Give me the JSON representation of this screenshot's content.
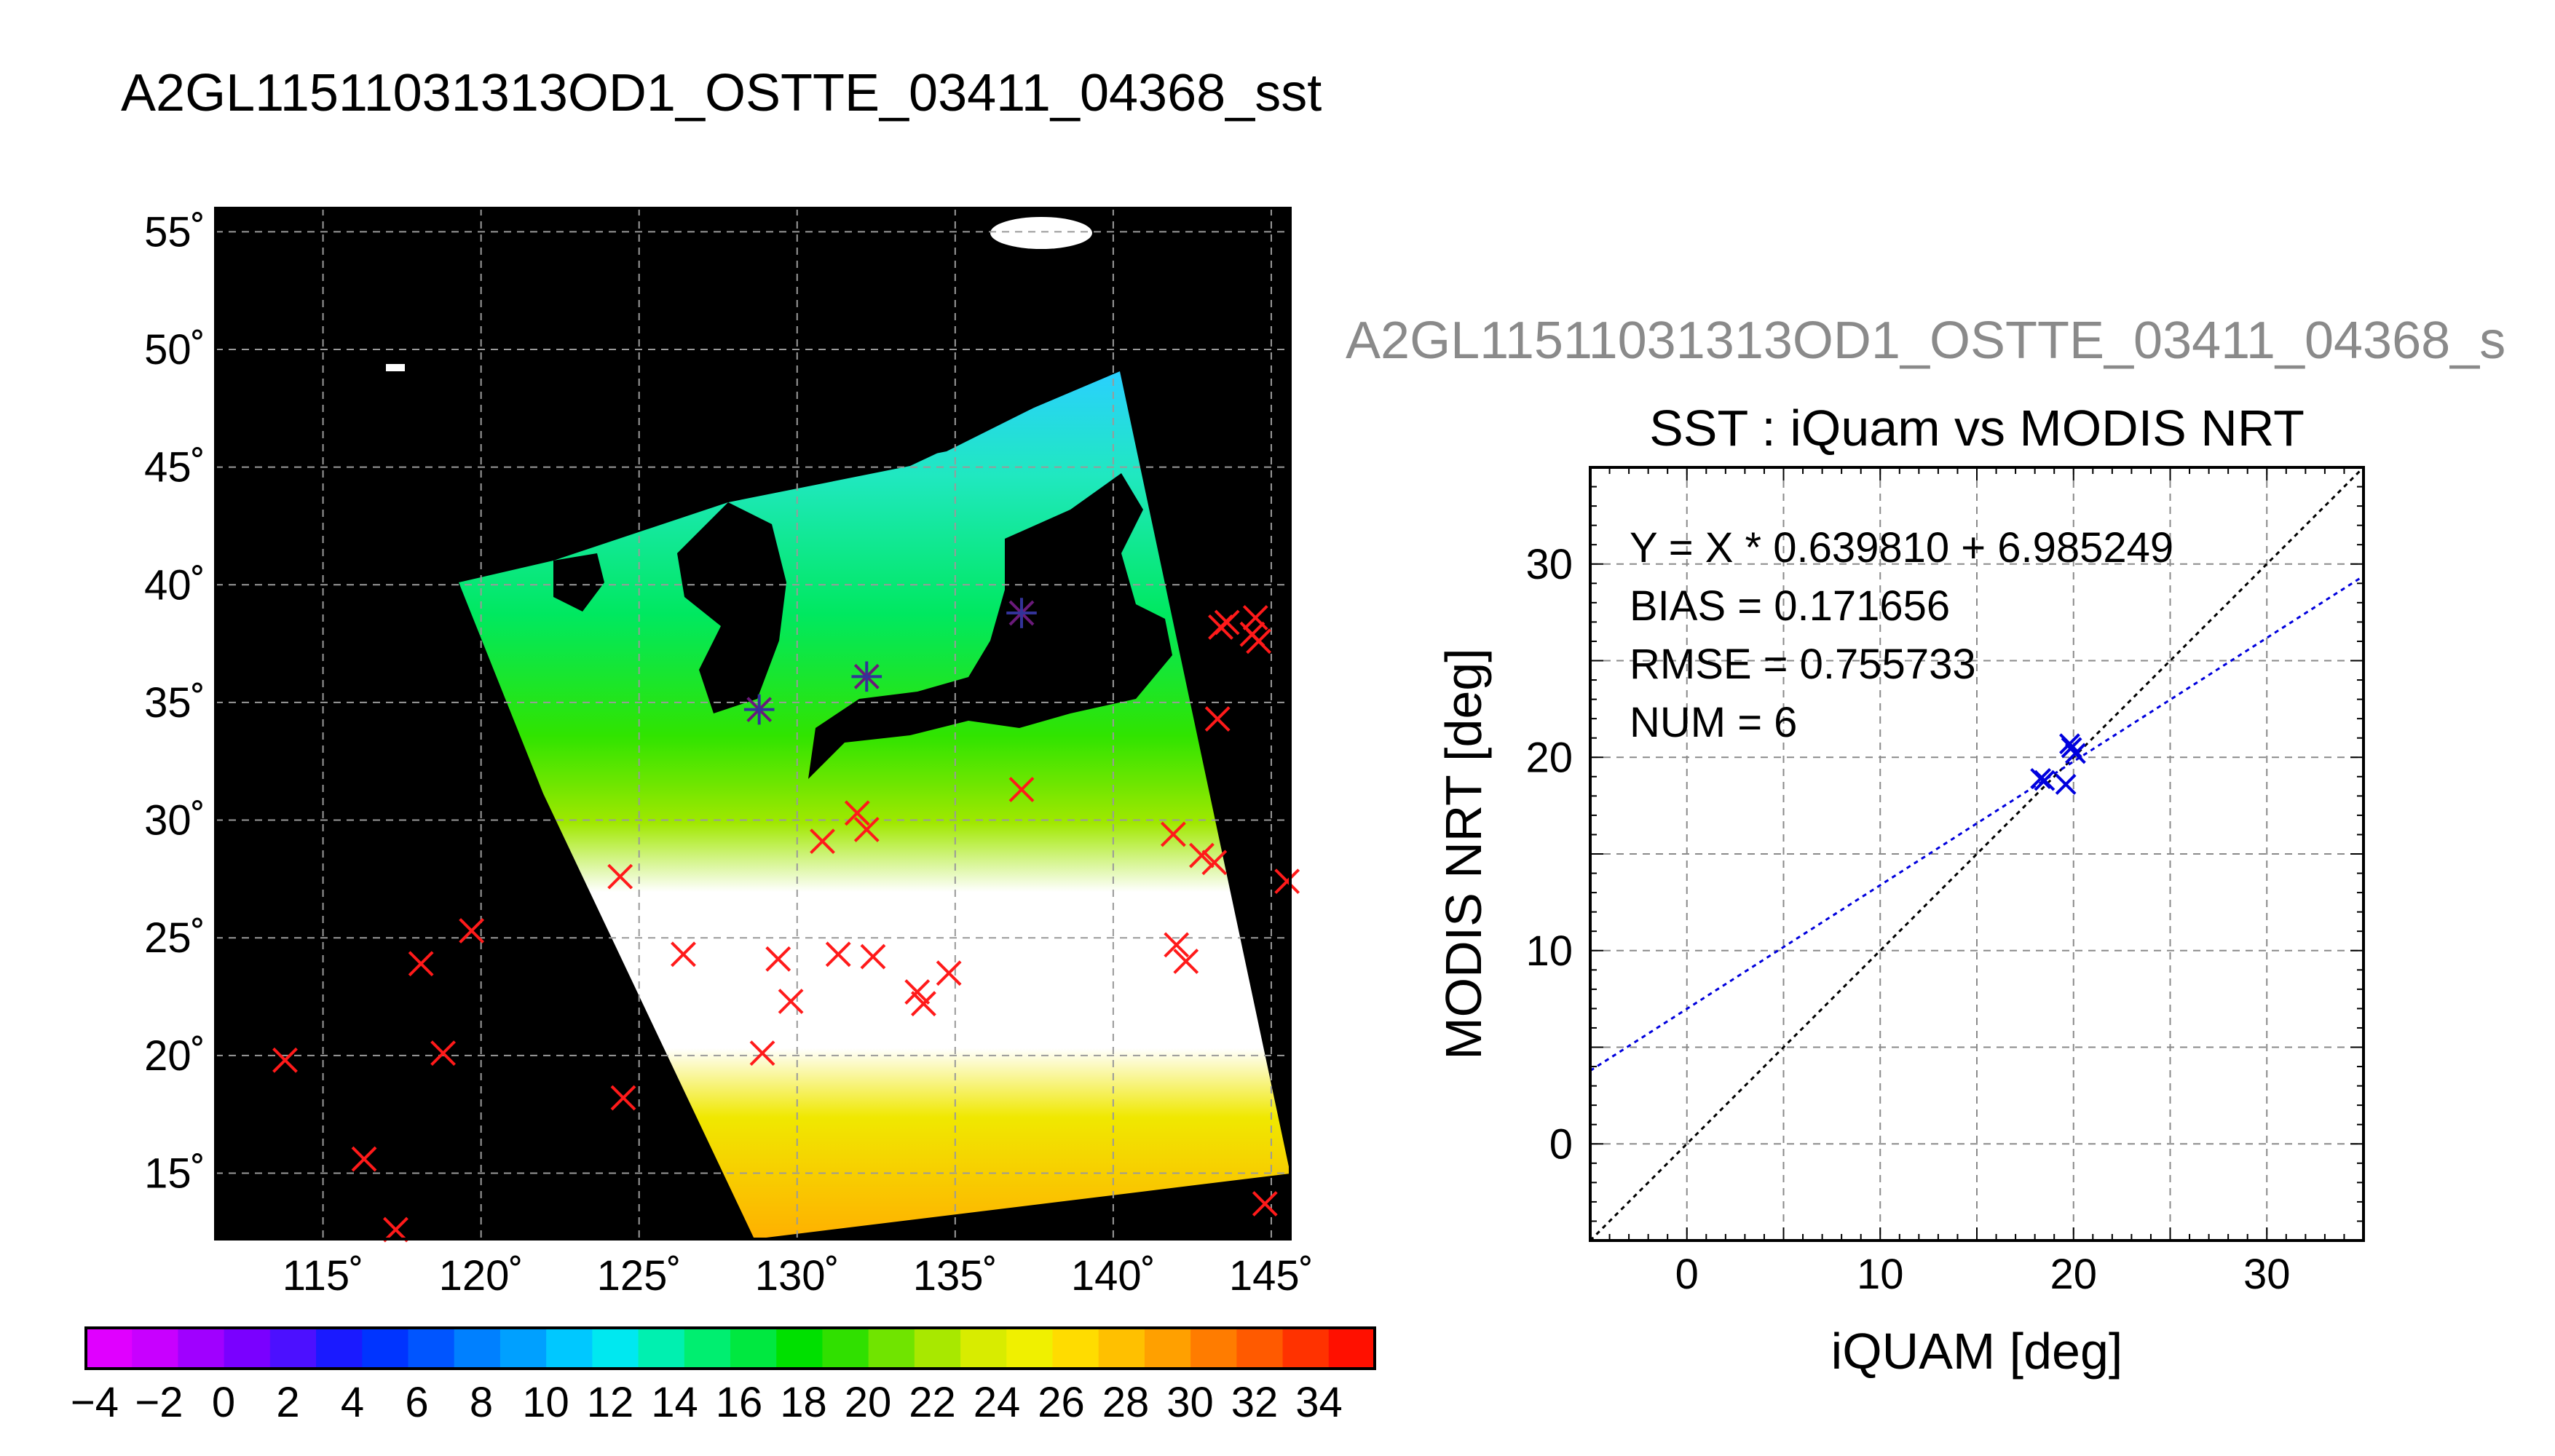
{
  "title": "A2GL11511031313OD1_OSTTE_03411_04368_sst",
  "scatter_title": "A2GL11511031313OD1_OSTTE_03411_04368_s",
  "colorbar": {
    "tick_labels": [
      "−4",
      "−2",
      "0",
      "2",
      "4",
      "6",
      "8",
      "10",
      "12",
      "14",
      "16",
      "18",
      "20",
      "22",
      "24",
      "26",
      "28",
      "30",
      "32",
      "34"
    ],
    "colors": [
      "#e000ff",
      "#c800ff",
      "#a000ff",
      "#7a00ff",
      "#4c10ff",
      "#1a1aff",
      "#0034ff",
      "#0055ff",
      "#0080ff",
      "#00a0ff",
      "#00c8ff",
      "#00e8f0",
      "#00f0b0",
      "#00ee70",
      "#00e840",
      "#00e000",
      "#30e000",
      "#70e400",
      "#a8e800",
      "#d8ec00",
      "#f0f000",
      "#ffdc00",
      "#ffc000",
      "#ffa000",
      "#ff7c00",
      "#ff5a00",
      "#ff3200",
      "#ff1000"
    ],
    "min": -4,
    "max": 36
  },
  "chart_data": [
    {
      "type": "scatter",
      "subtype": "map",
      "title": "",
      "xlabel": "",
      "ylabel": "",
      "x_tick_labels": [
        "115˚",
        "120˚",
        "125˚",
        "130˚",
        "135˚",
        "140˚",
        "145˚"
      ],
      "y_tick_labels": [
        "55˚",
        "50˚",
        "45˚",
        "40˚",
        "35˚",
        "30˚",
        "25˚",
        "20˚",
        "15˚"
      ],
      "x_ticks": [
        115,
        120,
        125,
        130,
        135,
        140,
        145
      ],
      "y_ticks": [
        55,
        50,
        45,
        40,
        35,
        30,
        25,
        20,
        15
      ],
      "xlim": [
        111.6,
        145.6
      ],
      "ylim": [
        12.2,
        56.0
      ],
      "grid": true,
      "background_color": "#000000",
      "matched_points": [
        {
          "lon": 128.8,
          "lat": 34.7
        },
        {
          "lon": 132.2,
          "lat": 36.1
        },
        {
          "lon": 137.1,
          "lat": 38.8
        }
      ],
      "unmatched_points": [
        {
          "lon": 113.8,
          "lat": 19.8
        },
        {
          "lon": 116.3,
          "lat": 15.6
        },
        {
          "lon": 117.3,
          "lat": 12.6
        },
        {
          "lon": 118.1,
          "lat": 23.9
        },
        {
          "lon": 118.8,
          "lat": 20.1
        },
        {
          "lon": 119.7,
          "lat": 25.3
        },
        {
          "lon": 124.4,
          "lat": 27.6
        },
        {
          "lon": 124.5,
          "lat": 18.2
        },
        {
          "lon": 126.4,
          "lat": 24.3
        },
        {
          "lon": 128.9,
          "lat": 20.1
        },
        {
          "lon": 129.4,
          "lat": 24.1
        },
        {
          "lon": 129.8,
          "lat": 22.3
        },
        {
          "lon": 130.8,
          "lat": 29.1
        },
        {
          "lon": 131.3,
          "lat": 24.3
        },
        {
          "lon": 131.9,
          "lat": 30.3
        },
        {
          "lon": 132.2,
          "lat": 29.6
        },
        {
          "lon": 132.4,
          "lat": 24.2
        },
        {
          "lon": 133.8,
          "lat": 22.7
        },
        {
          "lon": 134.0,
          "lat": 22.2
        },
        {
          "lon": 134.8,
          "lat": 23.5
        },
        {
          "lon": 137.1,
          "lat": 31.3
        },
        {
          "lon": 141.9,
          "lat": 29.4
        },
        {
          "lon": 142.0,
          "lat": 24.7
        },
        {
          "lon": 142.3,
          "lat": 24.0
        },
        {
          "lon": 142.8,
          "lat": 28.5
        },
        {
          "lon": 143.2,
          "lat": 28.2
        },
        {
          "lon": 143.3,
          "lat": 34.3
        },
        {
          "lon": 143.4,
          "lat": 38.2
        },
        {
          "lon": 143.6,
          "lat": 38.4
        },
        {
          "lon": 144.4,
          "lat": 37.9
        },
        {
          "lon": 144.5,
          "lat": 38.6
        },
        {
          "lon": 144.6,
          "lat": 37.6
        },
        {
          "lon": 144.8,
          "lat": 13.7
        },
        {
          "lon": 145.5,
          "lat": 27.4
        }
      ]
    },
    {
      "type": "scatter",
      "title": "SST : iQuam vs MODIS NRT",
      "xlabel": "iQUAM [deg]",
      "ylabel": "MODIS NRT [deg]",
      "xlim": [
        -5,
        35
      ],
      "ylim": [
        -5,
        35
      ],
      "x_ticks": [
        0,
        10,
        20,
        30
      ],
      "y_ticks": [
        0,
        10,
        20,
        30
      ],
      "grid": true,
      "annotations": [
        "Y = X * 0.639810 + 6.985249",
        "BIAS = 0.171656",
        "RMSE = 0.755733",
        "NUM = 6"
      ],
      "fit": {
        "slope": 0.63981,
        "intercept": 6.985249
      },
      "points": [
        {
          "x": 18.3,
          "y": 18.9
        },
        {
          "x": 18.5,
          "y": 18.8
        },
        {
          "x": 19.6,
          "y": 18.6
        },
        {
          "x": 19.8,
          "y": 20.7
        },
        {
          "x": 19.9,
          "y": 20.5
        },
        {
          "x": 20.1,
          "y": 20.2
        }
      ]
    }
  ]
}
